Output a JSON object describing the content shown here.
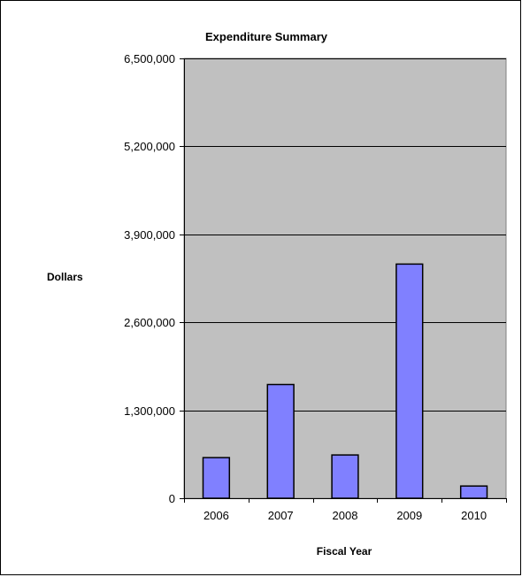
{
  "chart_data": {
    "type": "bar",
    "title": "Expenditure Summary",
    "xlabel": "Fiscal Year",
    "ylabel": "Dollars",
    "categories": [
      "2006",
      "2007",
      "2008",
      "2009",
      "2010"
    ],
    "values": [
      600000,
      1680000,
      640000,
      3460000,
      180000
    ],
    "ylim": [
      0,
      6500000
    ],
    "yticks": [
      0,
      1300000,
      2600000,
      3900000,
      5200000,
      6500000
    ],
    "ytick_labels": [
      "0",
      "1,300,000",
      "2,600,000",
      "3,900,000",
      "5,200,000",
      "6,500,000"
    ],
    "grid": true,
    "colors": {
      "plot_background": "#c0c0c0",
      "bar_fill": "#8080ff",
      "bar_stroke": "#000000",
      "gridline": "#000000"
    }
  }
}
